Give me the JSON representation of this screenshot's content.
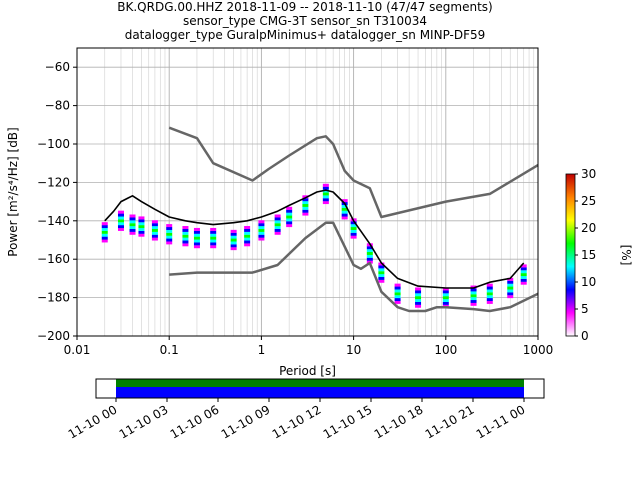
{
  "header": {
    "title_line1": "BK.QRDG.00.HHZ   2018-11-09 -- 2018-11-10  (47/47 segments)",
    "title_line2": "sensor_type CMG-3T sensor_sn T310034",
    "title_line3": "datalogger_type GuralpMinimus+ datalogger_sn MINP-DF59"
  },
  "chart_data": [
    {
      "type": "heatmap",
      "subtype": "probabilistic-power-spectral-density",
      "xlabel": "Period [s]",
      "ylabel": "Power [m²/s⁴/Hz] [dB]",
      "x_scale": "log",
      "xlim": [
        0.01,
        1000
      ],
      "ylim": [
        -200,
        -50
      ],
      "x_ticks": [
        "0.01",
        "0.1",
        "1",
        "10",
        "100",
        "1000"
      ],
      "y_ticks": [
        "−200",
        "−180",
        "−160",
        "−140",
        "−120",
        "−100",
        "−80",
        "−60"
      ],
      "y_tick_values": [
        -200,
        -180,
        -160,
        -140,
        -120,
        -100,
        -80,
        -60
      ],
      "colorbar": {
        "label": "[%]",
        "range": [
          0,
          30
        ],
        "ticks": [
          "0",
          "5",
          "10",
          "15",
          "20",
          "25",
          "30"
        ],
        "tick_values": [
          0,
          5,
          10,
          15,
          20,
          25,
          30
        ],
        "colors": [
          "#ffffff",
          "#ff00ff",
          "#0000ff",
          "#00ffff",
          "#00ff00",
          "#ffff00",
          "#ff8000",
          "#c00000"
        ]
      },
      "grid": true,
      "series": [
        {
          "color": "#000000",
          "x": [
            0.02,
            0.025,
            0.03,
            0.04,
            0.05,
            0.07,
            0.1,
            0.15,
            0.2,
            0.3,
            0.5,
            0.7,
            1,
            1.5,
            2,
            3,
            4,
            5,
            6,
            8,
            10,
            15,
            20,
            30,
            50,
            100,
            200,
            300,
            500,
            700
          ],
          "y": [
            -140,
            -135,
            -130,
            -127,
            -130,
            -134,
            -138,
            -140,
            -141,
            -142,
            -141,
            -140,
            -138,
            -135,
            -132,
            -128,
            -125,
            -124,
            -125,
            -131,
            -140,
            -152,
            -162,
            -170,
            -174,
            -175,
            -175,
            -172,
            -170,
            -162
          ]
        },
        {
          "color": "#666666",
          "x": [
            0.1,
            0.2,
            0.3,
            0.8,
            1.2,
            2,
            4,
            5,
            6,
            8,
            10,
            15,
            20,
            30,
            100,
            300,
            1000
          ],
          "y": [
            -91.5,
            -97,
            -110,
            -119,
            -113,
            -106,
            -97,
            -96,
            -100,
            -114,
            -119,
            -123,
            -138,
            -136,
            -130,
            -126,
            -111
          ]
        },
        {
          "color": "#666666",
          "x": [
            0.1,
            0.2,
            0.8,
            1.5,
            3,
            5,
            6,
            10,
            12,
            15,
            20,
            30,
            40,
            60,
            80,
            100,
            200,
            300,
            500,
            1000
          ],
          "y": [
            -168,
            -167,
            -167,
            -163,
            -149,
            -141,
            -141,
            -163,
            -165,
            -162,
            -177,
            -185,
            -187,
            -187,
            -185,
            -185,
            -186,
            -187,
            -185,
            -178
          ]
        }
      ],
      "scatter": {
        "name": "ppsd-cells",
        "x": [
          0.02,
          0.03,
          0.04,
          0.05,
          0.07,
          0.1,
          0.15,
          0.2,
          0.3,
          0.5,
          0.7,
          1,
          1.5,
          2,
          3,
          5,
          8,
          10,
          15,
          20,
          30,
          50,
          100,
          200,
          300,
          500,
          700
        ],
        "y": [
          -146,
          -140,
          -142,
          -143,
          -145,
          -147,
          -148,
          -149,
          -149,
          -150,
          -148,
          -145,
          -142,
          -138,
          -132,
          -126,
          -134,
          -144,
          -157,
          -167,
          -178,
          -180,
          -180,
          -179,
          -178,
          -175,
          -168
        ]
      }
    },
    {
      "type": "bar",
      "subtype": "segment-coverage",
      "x_ticks": [
        "11-10 00",
        "11-10 03",
        "11-10 06",
        "11-10 09",
        "11-10 12",
        "11-10 15",
        "11-10 18",
        "11-10 21",
        "11-11 00"
      ],
      "bands": [
        {
          "name": "data",
          "color": "#008000"
        },
        {
          "name": "ppsd",
          "color": "#0000ff"
        }
      ]
    }
  ]
}
